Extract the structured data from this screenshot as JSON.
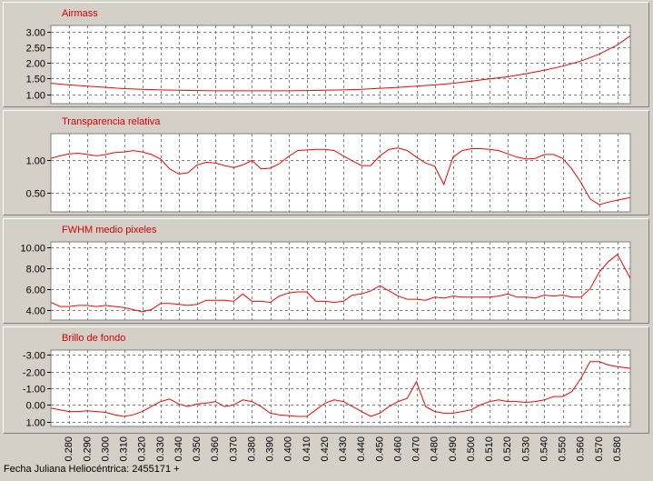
{
  "x_ticks": [
    "0.280",
    "0.290",
    "0.300",
    "0.310",
    "0.320",
    "0.330",
    "0.340",
    "0.350",
    "0.360",
    "0.370",
    "0.380",
    "0.390",
    "0.400",
    "0.410",
    "0.420",
    "0.430",
    "0.440",
    "0.450",
    "0.460",
    "0.470",
    "0.480",
    "0.490",
    "0.500",
    "0.510",
    "0.520",
    "0.530",
    "0.540",
    "0.550",
    "0.560",
    "0.570",
    "0.580"
  ],
  "footer_label": "Fecha Juliana Heliocéntrica: 2455171 +",
  "colors": {
    "line": "#ff0000",
    "title": "#d40000",
    "background": "#d4d0c8",
    "plot_bg": "#ffffff",
    "grid": "#808080"
  },
  "chart_data": [
    {
      "type": "line",
      "title": "Airmass",
      "x": [
        0.27,
        0.28,
        0.29,
        0.3,
        0.31,
        0.32,
        0.33,
        0.34,
        0.35,
        0.36,
        0.37,
        0.38,
        0.39,
        0.4,
        0.41,
        0.42,
        0.43,
        0.44,
        0.45,
        0.46,
        0.47,
        0.48,
        0.49,
        0.5,
        0.51,
        0.52,
        0.53,
        0.54,
        0.55,
        0.56,
        0.57,
        0.58,
        0.587
      ],
      "y": [
        1.35,
        1.3,
        1.26,
        1.22,
        1.18,
        1.16,
        1.14,
        1.13,
        1.12,
        1.11,
        1.11,
        1.11,
        1.11,
        1.11,
        1.12,
        1.13,
        1.14,
        1.16,
        1.19,
        1.22,
        1.26,
        1.3,
        1.35,
        1.42,
        1.49,
        1.56,
        1.66,
        1.77,
        1.9,
        2.06,
        2.28,
        2.58,
        2.87
      ],
      "yticks": [
        "3.00",
        "2.50",
        "2.00",
        "1.50",
        "1.00"
      ],
      "ylim": [
        0.7,
        3.2
      ],
      "inverted": false,
      "grid": true
    },
    {
      "type": "line",
      "title": "Transparencia relativa",
      "x": [
        0.27,
        0.275,
        0.28,
        0.285,
        0.29,
        0.295,
        0.3,
        0.305,
        0.31,
        0.315,
        0.32,
        0.325,
        0.33,
        0.335,
        0.34,
        0.345,
        0.35,
        0.355,
        0.36,
        0.365,
        0.37,
        0.375,
        0.38,
        0.385,
        0.39,
        0.395,
        0.4,
        0.405,
        0.41,
        0.415,
        0.42,
        0.425,
        0.43,
        0.435,
        0.44,
        0.445,
        0.45,
        0.455,
        0.46,
        0.465,
        0.47,
        0.475,
        0.48,
        0.485,
        0.49,
        0.495,
        0.5,
        0.505,
        0.51,
        0.515,
        0.52,
        0.525,
        0.53,
        0.535,
        0.54,
        0.545,
        0.55,
        0.555,
        0.56,
        0.565,
        0.57,
        0.575,
        0.58,
        0.587
      ],
      "y": [
        1.02,
        1.06,
        1.09,
        1.1,
        1.08,
        1.06,
        1.08,
        1.11,
        1.12,
        1.14,
        1.12,
        1.08,
        1.01,
        0.86,
        0.78,
        0.8,
        0.92,
        0.96,
        0.95,
        0.91,
        0.88,
        0.92,
        0.99,
        0.86,
        0.87,
        0.94,
        1.05,
        1.14,
        1.15,
        1.16,
        1.16,
        1.14,
        1.06,
        0.98,
        0.91,
        0.91,
        1.06,
        1.16,
        1.18,
        1.14,
        1.04,
        0.95,
        0.9,
        0.62,
        1.04,
        1.14,
        1.17,
        1.17,
        1.16,
        1.14,
        1.09,
        1.04,
        1.01,
        1.02,
        1.08,
        1.08,
        1.02,
        0.86,
        0.65,
        0.4,
        0.31,
        0.35,
        0.38,
        0.42
      ],
      "yticks": [
        "1.00",
        "0.50"
      ],
      "ylim": [
        0.2,
        1.4
      ],
      "inverted": false,
      "grid": true
    },
    {
      "type": "line",
      "title": "FWHM medio pixeles",
      "x": [
        0.27,
        0.275,
        0.28,
        0.285,
        0.29,
        0.295,
        0.3,
        0.305,
        0.31,
        0.315,
        0.32,
        0.325,
        0.33,
        0.335,
        0.34,
        0.345,
        0.35,
        0.355,
        0.36,
        0.365,
        0.37,
        0.375,
        0.38,
        0.385,
        0.39,
        0.395,
        0.4,
        0.405,
        0.41,
        0.415,
        0.42,
        0.425,
        0.43,
        0.435,
        0.44,
        0.445,
        0.45,
        0.455,
        0.46,
        0.465,
        0.47,
        0.475,
        0.48,
        0.485,
        0.49,
        0.495,
        0.5,
        0.505,
        0.51,
        0.515,
        0.52,
        0.525,
        0.53,
        0.535,
        0.54,
        0.545,
        0.55,
        0.555,
        0.56,
        0.565,
        0.57,
        0.575,
        0.58,
        0.587
      ],
      "y": [
        4.7,
        4.3,
        4.3,
        4.4,
        4.4,
        4.3,
        4.4,
        4.3,
        4.2,
        4.0,
        3.8,
        4.0,
        4.6,
        4.6,
        4.5,
        4.4,
        4.5,
        4.9,
        4.9,
        4.9,
        4.8,
        5.5,
        4.8,
        4.8,
        4.7,
        5.3,
        5.6,
        5.7,
        5.7,
        4.8,
        4.8,
        4.7,
        4.8,
        5.4,
        5.5,
        5.8,
        6.3,
        5.8,
        5.3,
        5.0,
        5.0,
        4.9,
        5.2,
        5.1,
        5.3,
        5.2,
        5.2,
        5.2,
        5.2,
        5.3,
        5.5,
        5.2,
        5.2,
        5.1,
        5.4,
        5.3,
        5.4,
        5.2,
        5.2,
        6.0,
        7.6,
        8.6,
        9.3,
        7.0
      ],
      "yticks": [
        "10.00",
        "8.00",
        "6.00",
        "4.00"
      ],
      "ylim": [
        3.0,
        10.5
      ],
      "inverted": false,
      "grid": true
    },
    {
      "type": "line",
      "title": "Brillo de fondo",
      "x": [
        0.27,
        0.275,
        0.28,
        0.285,
        0.29,
        0.295,
        0.3,
        0.305,
        0.31,
        0.315,
        0.32,
        0.325,
        0.33,
        0.335,
        0.34,
        0.345,
        0.35,
        0.355,
        0.36,
        0.365,
        0.37,
        0.375,
        0.38,
        0.385,
        0.39,
        0.395,
        0.4,
        0.405,
        0.41,
        0.415,
        0.42,
        0.425,
        0.43,
        0.435,
        0.44,
        0.445,
        0.45,
        0.455,
        0.46,
        0.465,
        0.47,
        0.475,
        0.48,
        0.485,
        0.49,
        0.495,
        0.5,
        0.505,
        0.51,
        0.515,
        0.52,
        0.525,
        0.53,
        0.535,
        0.54,
        0.545,
        0.55,
        0.555,
        0.56,
        0.565,
        0.57,
        0.575,
        0.58,
        0.587
      ],
      "y": [
        0.2,
        0.3,
        0.4,
        0.4,
        0.35,
        0.4,
        0.45,
        0.6,
        0.7,
        0.6,
        0.4,
        0.1,
        -0.2,
        -0.35,
        -0.05,
        0.1,
        -0.05,
        -0.1,
        -0.2,
        0.1,
        0.0,
        -0.3,
        -0.2,
        0.1,
        0.5,
        0.6,
        0.65,
        0.7,
        0.7,
        0.3,
        -0.1,
        -0.3,
        -0.2,
        0.1,
        0.4,
        0.7,
        0.5,
        0.1,
        -0.2,
        -0.4,
        -1.4,
        0.1,
        0.4,
        0.5,
        0.5,
        0.4,
        0.3,
        0.0,
        -0.2,
        -0.3,
        -0.2,
        -0.2,
        -0.15,
        -0.2,
        -0.3,
        -0.5,
        -0.5,
        -0.8,
        -1.6,
        -2.6,
        -2.6,
        -2.4,
        -2.3,
        -2.2
      ],
      "yticks": [
        "-3.00",
        "-2.00",
        "-1.00",
        "0.00",
        "1.00"
      ],
      "ylim": [
        -3.3,
        1.3
      ],
      "inverted": true,
      "grid": true
    }
  ]
}
